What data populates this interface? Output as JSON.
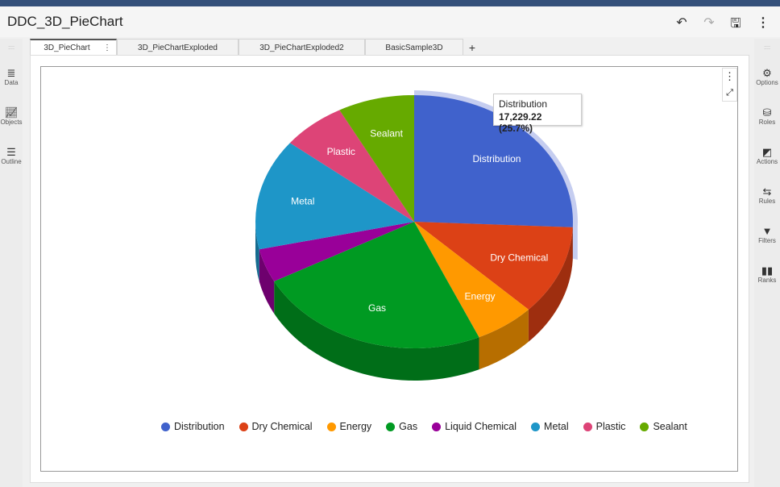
{
  "header": {
    "title": "DDC_3D_PieChart",
    "undo_icon": "undo-icon",
    "redo_icon": "redo-icon",
    "save_icon": "save-icon",
    "more_icon": "more-vertical-icon"
  },
  "tabs": [
    {
      "label": "3D_PieChart",
      "active": true
    },
    {
      "label": "3D_PieChartExploded"
    },
    {
      "label": "3D_PieChartExploded2"
    },
    {
      "label": "BasicSample3D"
    }
  ],
  "add_tab": "+",
  "left_rail": [
    {
      "label": "Data",
      "icon": "database-icon"
    },
    {
      "label": "Objects",
      "icon": "chart-line-icon"
    },
    {
      "label": "Outline",
      "icon": "list-icon"
    }
  ],
  "right_rail": [
    {
      "label": "Options",
      "icon": "options-icon"
    },
    {
      "label": "Roles",
      "icon": "roles-icon"
    },
    {
      "label": "Actions",
      "icon": "actions-icon"
    },
    {
      "label": "Rules",
      "icon": "rules-icon"
    },
    {
      "label": "Filters",
      "icon": "filter-icon"
    },
    {
      "label": "Ranks",
      "icon": "ranks-icon"
    }
  ],
  "tooltip": {
    "name": "Distribution",
    "value": "17,229.22 (25.7%)"
  },
  "chart_data": {
    "type": "pie",
    "style": "3d",
    "legend": "bottom",
    "categories": [
      "Distribution",
      "Dry Chemical",
      "Energy",
      "Gas",
      "Liquid Chemical",
      "Metal",
      "Plastic",
      "Sealant"
    ],
    "percent": [
      25.7,
      11.5,
      6.1,
      23.9,
      4.3,
      14.2,
      6.5,
      7.8
    ],
    "values": [
      17229.22,
      7710,
      4090,
      16020,
      2880,
      9520,
      4360,
      5230
    ],
    "colors": [
      "#4062cc",
      "#dc4116",
      "#ff9900",
      "#009a22",
      "#990099",
      "#1e96c8",
      "#dd4477",
      "#66aa00"
    ],
    "slice_labels_visible": [
      true,
      true,
      true,
      true,
      false,
      true,
      true,
      true
    ],
    "highlighted": "Distribution"
  }
}
